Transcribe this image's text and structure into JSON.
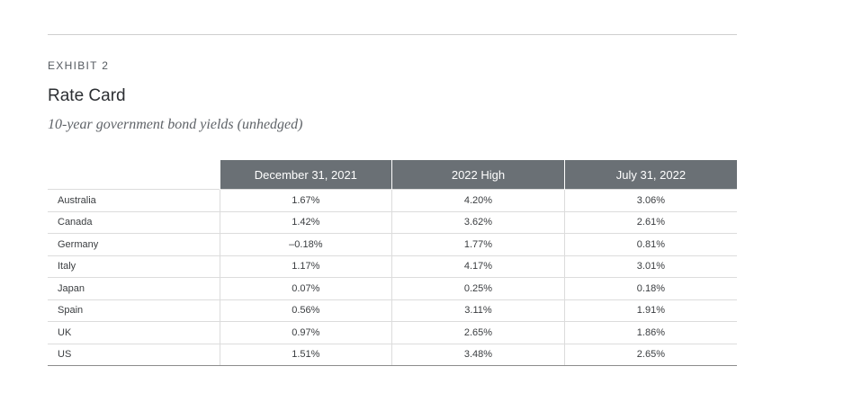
{
  "exhibit": {
    "label": "EXHIBIT 2",
    "title": "Rate Card",
    "subtitle": "10-year government bond yields (unhedged)"
  },
  "table": {
    "columns": [
      "December 31, 2021",
      "2022 High",
      "July 31, 2022"
    ],
    "rows": [
      {
        "country": "Australia",
        "values": [
          "1.67%",
          "4.20%",
          "3.06%"
        ]
      },
      {
        "country": "Canada",
        "values": [
          "1.42%",
          "3.62%",
          "2.61%"
        ]
      },
      {
        "country": "Germany",
        "values": [
          "–0.18%",
          "1.77%",
          "0.81%"
        ]
      },
      {
        "country": "Italy",
        "values": [
          "1.17%",
          "4.17%",
          "3.01%"
        ]
      },
      {
        "country": "Japan",
        "values": [
          "0.07%",
          "0.25%",
          "0.18%"
        ]
      },
      {
        "country": "Spain",
        "values": [
          "0.56%",
          "3.11%",
          "1.91%"
        ]
      },
      {
        "country": "UK",
        "values": [
          "0.97%",
          "2.65%",
          "1.86%"
        ]
      },
      {
        "country": "US",
        "values": [
          "1.51%",
          "3.48%",
          "2.65%"
        ]
      }
    ]
  },
  "colors": {
    "header_background": "#6a7075",
    "header_text": "#ffffff",
    "rule": "#cfcfcf"
  }
}
